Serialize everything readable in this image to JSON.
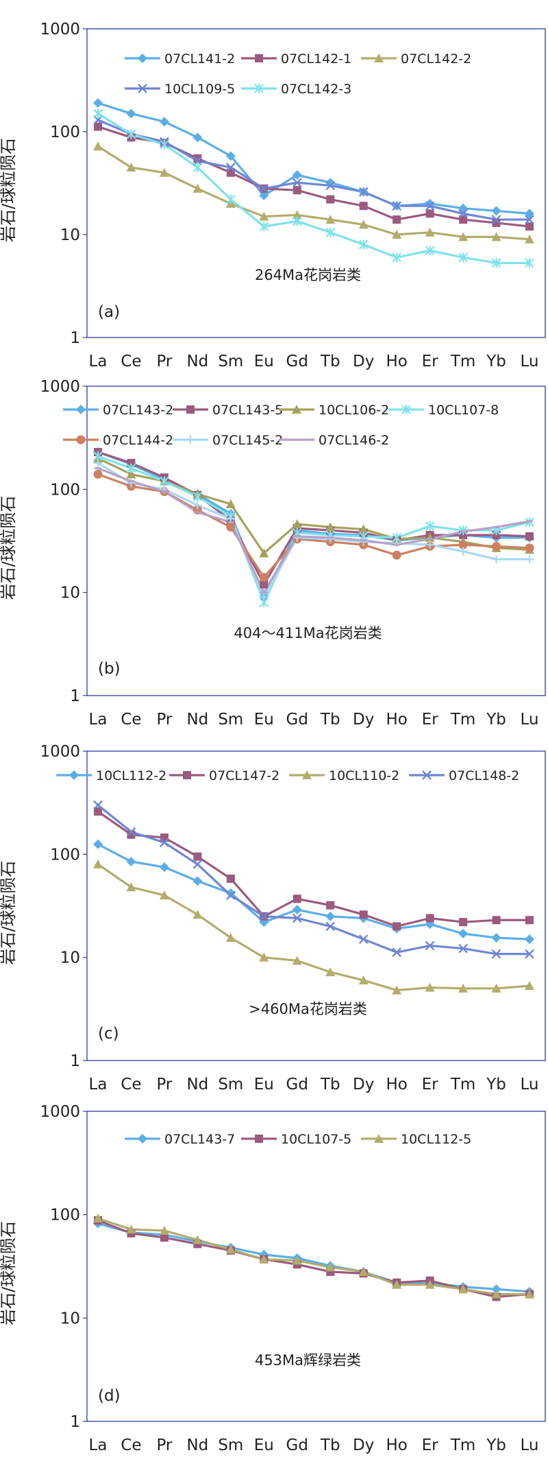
{
  "figure": {
    "ylabel": "岩石/球粒陨石"
  },
  "chart_data": [
    {
      "type": "line",
      "yscale": "log",
      "ylim": [
        1,
        1000
      ],
      "yticks": [
        "1",
        "10",
        "100",
        "1000"
      ],
      "ylabel": "岩石/球粒陨石",
      "categories": [
        "La",
        "Ce",
        "Pr",
        "Nd",
        "Sm",
        "Eu",
        "Gd",
        "Tb",
        "Dy",
        "Ho",
        "Er",
        "Tm",
        "Yb",
        "Lu"
      ],
      "annotation": "264Ma花岗岩类",
      "panel_label": "(a)",
      "legend_position": "top",
      "series": [
        {
          "name": "07CL141-2",
          "color": "#5aaee8",
          "marker": "diamond",
          "values": [
            190,
            150,
            125,
            88,
            58,
            24,
            38,
            32,
            26,
            19,
            20,
            18,
            17,
            16
          ]
        },
        {
          "name": "07CL142-1",
          "color": "#9b5a7e",
          "marker": "square",
          "values": [
            112,
            88,
            78,
            55,
            40,
            28,
            27,
            22,
            19,
            14,
            16,
            14,
            13,
            12
          ]
        },
        {
          "name": "07CL142-2",
          "color": "#b3ac6c",
          "marker": "triangle",
          "values": [
            72,
            45,
            40,
            28,
            20,
            15,
            15.5,
            14,
            12.5,
            10,
            10.5,
            9.5,
            9.5,
            9
          ]
        },
        {
          "name": "10CL109-5",
          "color": "#6f86d6",
          "marker": "x",
          "values": [
            130,
            95,
            80,
            52,
            45,
            28,
            32,
            30,
            26,
            19,
            19,
            16,
            14,
            14
          ]
        },
        {
          "name": "07CL142-3",
          "color": "#7ee2ec",
          "marker": "star",
          "values": [
            150,
            95,
            75,
            45,
            22,
            12,
            13.5,
            10.5,
            8,
            6,
            7,
            6,
            5.3,
            5.3
          ]
        }
      ]
    },
    {
      "type": "line",
      "yscale": "log",
      "ylim": [
        1,
        1000
      ],
      "yticks": [
        "1",
        "10",
        "100",
        "1000"
      ],
      "ylabel": "岩石/球粒陨石",
      "categories": [
        "La",
        "Ce",
        "Pr",
        "Nd",
        "Sm",
        "Eu",
        "Gd",
        "Tb",
        "Dy",
        "Ho",
        "Er",
        "Tm",
        "Yb",
        "Lu"
      ],
      "annotation": "404～411Ma花岗岩类",
      "panel_label": "(b)",
      "legend_position": "top",
      "series": [
        {
          "name": "07CL143-2",
          "color": "#5aaee8",
          "marker": "diamond",
          "values": [
            230,
            175,
            125,
            90,
            58,
            9,
            40,
            37,
            36,
            32,
            34,
            36,
            34,
            34
          ]
        },
        {
          "name": "07CL143-5",
          "color": "#9b5a7e",
          "marker": "square",
          "values": [
            230,
            180,
            130,
            88,
            50,
            12,
            42,
            40,
            38,
            32,
            36,
            36,
            36,
            35
          ]
        },
        {
          "name": "10CL106-2",
          "color": "#a4a25c",
          "marker": "triangle",
          "values": [
            200,
            140,
            120,
            90,
            72,
            24,
            46,
            43,
            41,
            33,
            34,
            31,
            27,
            26
          ]
        },
        {
          "name": "10CL107-8",
          "color": "#7ee2ec",
          "marker": "star",
          "values": [
            210,
            160,
            120,
            85,
            55,
            8,
            38,
            36,
            35,
            34,
            44,
            40,
            40,
            48
          ]
        },
        {
          "name": "07CL144-2",
          "color": "#cd8060",
          "marker": "circle",
          "values": [
            140,
            107,
            95,
            63,
            43,
            14,
            33,
            31,
            29,
            23,
            28,
            29,
            28,
            27
          ]
        },
        {
          "name": "07CL145-2",
          "color": "#a8d9f5",
          "marker": "plus",
          "values": [
            180,
            115,
            100,
            70,
            52,
            9,
            34,
            33,
            31,
            30,
            29,
            25,
            21,
            21
          ]
        },
        {
          "name": "07CL146-2",
          "color": "#b8a0c8",
          "marker": "line",
          "values": [
            160,
            120,
            95,
            60,
            48,
            10,
            35,
            34,
            32,
            29,
            33,
            39,
            43,
            49
          ]
        }
      ]
    },
    {
      "type": "line",
      "yscale": "log",
      "ylim": [
        1,
        1000
      ],
      "yticks": [
        "1",
        "10",
        "100",
        "1000"
      ],
      "ylabel": "岩石/球粒陨石",
      "categories": [
        "La",
        "Ce",
        "Pr",
        "Nd",
        "Sm",
        "Eu",
        "Gd",
        "Tb",
        "Dy",
        "Ho",
        "Er",
        "Tm",
        "Yb",
        "Lu"
      ],
      "annotation": ">460Ma花岗岩类",
      "panel_label": "(c)",
      "legend_position": "top",
      "series": [
        {
          "name": "10CL112-2",
          "color": "#5aaee8",
          "marker": "diamond",
          "values": [
            125,
            85,
            75,
            55,
            42,
            22,
            29,
            25,
            24,
            19,
            21,
            17,
            15.5,
            15
          ]
        },
        {
          "name": "07CL147-2",
          "color": "#9b5a7e",
          "marker": "square",
          "values": [
            260,
            155,
            145,
            95,
            58,
            25,
            37,
            32,
            26,
            20,
            24,
            22,
            23,
            23
          ]
        },
        {
          "name": "10CL110-2",
          "color": "#b3ac6c",
          "marker": "triangle",
          "values": [
            80,
            48,
            40,
            26,
            15.5,
            10,
            9.3,
            7.2,
            6,
            4.8,
            5.1,
            5,
            5,
            5.3
          ]
        },
        {
          "name": "07CL148-2",
          "color": "#6f86d6",
          "marker": "x",
          "values": [
            300,
            165,
            130,
            80,
            40,
            25,
            24,
            20,
            15,
            11.2,
            13,
            12.2,
            10.8,
            10.8
          ]
        }
      ]
    },
    {
      "type": "line",
      "yscale": "log",
      "ylim": [
        1,
        1000
      ],
      "yticks": [
        "1",
        "10",
        "100",
        "1000"
      ],
      "ylabel": "岩石/球粒陨石",
      "categories": [
        "La",
        "Ce",
        "Pr",
        "Nd",
        "Sm",
        "Eu",
        "Gd",
        "Tb",
        "Dy",
        "Ho",
        "Er",
        "Tm",
        "Yb",
        "Lu"
      ],
      "annotation": "453Ma辉绿岩类",
      "panel_label": "(d)",
      "legend_position": "top",
      "series": [
        {
          "name": "07CL143-7",
          "color": "#5aaee8",
          "marker": "diamond",
          "values": [
            82,
            67,
            64,
            55,
            48,
            41,
            38,
            32,
            28,
            22,
            22,
            20,
            19,
            18
          ]
        },
        {
          "name": "10CL107-5",
          "color": "#9b5a7e",
          "marker": "square",
          "values": [
            88,
            66,
            60,
            52,
            45,
            37,
            33,
            28,
            27,
            22,
            23,
            19,
            16,
            17
          ]
        },
        {
          "name": "10CL112-5",
          "color": "#b3ac6c",
          "marker": "triangle",
          "values": [
            92,
            72,
            70,
            57,
            46,
            37,
            36,
            31,
            28,
            21,
            21,
            19,
            17,
            17
          ]
        }
      ]
    }
  ]
}
